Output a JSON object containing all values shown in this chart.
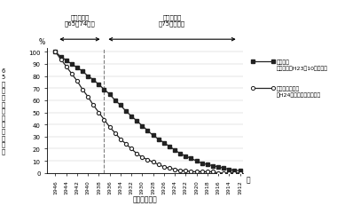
{
  "xlabel": "生年（西暦）",
  "ylabel_chars": "65歳以上人口に占める割合",
  "ylabel_pct": "%",
  "nendai_label": "年",
  "xlim": [
    1911.5,
    1947.5
  ],
  "ylim": [
    0,
    103
  ],
  "dashed_line_x": 1937,
  "xticks": [
    1946,
    1944,
    1942,
    1940,
    1938,
    1936,
    1934,
    1932,
    1930,
    1928,
    1926,
    1924,
    1922,
    1920,
    1918,
    1916,
    1914,
    1912
  ],
  "yticks": [
    0,
    10,
    20,
    30,
    40,
    50,
    60,
    70,
    80,
    90,
    100
  ],
  "ann_left": "前期高齢者\n（65～74歳）",
  "ann_right": "後期高齢者\n（75歳以上）",
  "legend1_line1": "一般統計",
  "legend1_line2": "（人口推計H23年10月時点）",
  "legend2_line1": "療育手帳所持者",
  "legend2_line2": "（H24年市町村悉皆調査）",
  "general_x": [
    1946,
    1945,
    1944,
    1943,
    1942,
    1941,
    1940,
    1939,
    1938,
    1937,
    1936,
    1935,
    1934,
    1933,
    1932,
    1931,
    1930,
    1929,
    1928,
    1927,
    1926,
    1925,
    1924,
    1923,
    1922,
    1921,
    1920,
    1919,
    1918,
    1917,
    1916,
    1915,
    1914,
    1913,
    1912
  ],
  "general_y": [
    100,
    96,
    93,
    90,
    87,
    84,
    80,
    77,
    73,
    69,
    65,
    60,
    56,
    51,
    47,
    43,
    39,
    35,
    31,
    28,
    25,
    22,
    19,
    16,
    14,
    12,
    10,
    8,
    7,
    6,
    5,
    4,
    3,
    2,
    2
  ],
  "ryouiku_x": [
    1946,
    1945,
    1944,
    1943,
    1942,
    1941,
    1940,
    1939,
    1938,
    1937,
    1936,
    1935,
    1934,
    1933,
    1932,
    1931,
    1930,
    1929,
    1928,
    1927,
    1926,
    1925,
    1924,
    1923,
    1922,
    1921,
    1920,
    1919,
    1918,
    1917,
    1916,
    1915,
    1914,
    1913,
    1912
  ],
  "ryouiku_y": [
    100,
    94,
    88,
    82,
    76,
    69,
    63,
    56,
    50,
    44,
    38,
    33,
    28,
    24,
    20,
    16,
    13,
    11,
    9,
    7,
    5,
    4,
    3,
    2,
    2,
    1,
    1,
    1,
    1,
    1,
    0,
    0,
    0,
    0,
    0
  ],
  "line_color": "#222222",
  "bg_color": "#ffffff"
}
